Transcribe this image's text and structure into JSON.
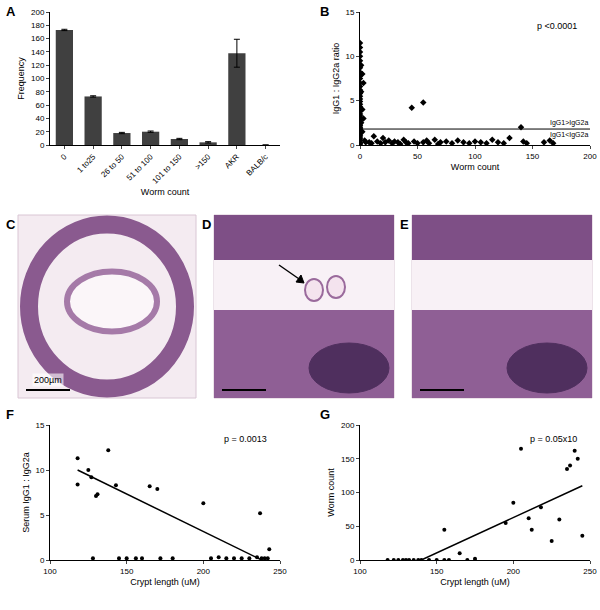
{
  "chart_data": [
    {
      "title": "A",
      "type": "bar",
      "xlabel": "Worm count",
      "ylabel": "Frequency",
      "categories": [
        "0",
        "1 to25",
        "26 to 50",
        "51 to 100",
        "101 to 150",
        ">150",
        "AKR",
        "BALB/c"
      ],
      "values": [
        173,
        73,
        18,
        20,
        9,
        4,
        138,
        0
      ],
      "errors": [
        1,
        1,
        1,
        1,
        1,
        1,
        21,
        0
      ],
      "color": "#404040",
      "ylim": [
        0,
        200
      ],
      "yticks": [
        0,
        20,
        40,
        60,
        80,
        100,
        120,
        140,
        160,
        180,
        200
      ]
    },
    {
      "title": "B",
      "type": "scatter",
      "xlabel": "Worm count",
      "ylabel": "IgG1 : IgG2a ratio",
      "x": [
        0,
        0,
        0,
        0,
        0,
        0,
        0,
        0,
        0,
        0,
        0,
        0,
        0,
        0,
        0,
        0,
        0,
        0,
        0,
        0,
        0,
        0,
        0,
        0,
        0,
        0,
        0,
        0,
        0,
        0,
        0,
        0,
        0,
        0,
        0,
        0,
        0,
        0,
        0,
        0,
        1,
        1,
        2,
        3,
        1,
        2,
        4,
        5,
        3,
        2,
        8,
        10,
        12,
        15,
        18,
        20,
        22,
        25,
        28,
        30,
        33,
        35,
        38,
        40,
        42,
        45,
        47,
        50,
        55,
        55,
        58,
        60,
        65,
        68,
        70,
        75,
        80,
        85,
        90,
        95,
        100,
        105,
        110,
        115,
        120,
        125,
        130,
        140,
        142,
        145,
        160,
        165,
        168
      ],
      "values": [
        11.5,
        11,
        10.5,
        10,
        9.5,
        9,
        8.7,
        8.2,
        7.8,
        7.5,
        7,
        6.6,
        6.2,
        5.8,
        5.5,
        5.2,
        4.9,
        4.6,
        4.3,
        4,
        3.8,
        3.5,
        3.3,
        3,
        2.8,
        2.6,
        2.4,
        2.2,
        2,
        1.9,
        1.7,
        1.5,
        1.3,
        1.1,
        0.9,
        0.7,
        0.5,
        0.3,
        0.2,
        0.1,
        9,
        6,
        4,
        3,
        2.5,
        1.5,
        0.5,
        0.3,
        7,
        8,
        0.3,
        0.2,
        1,
        0.4,
        0.2,
        0.8,
        0.3,
        0.5,
        0.2,
        0.4,
        0.3,
        0.1,
        0.6,
        0.3,
        0.2,
        4.2,
        0.4,
        0.2,
        4.8,
        0.3,
        0.5,
        0.2,
        0.6,
        0.1,
        0.3,
        0.4,
        0.2,
        0.5,
        0.3,
        0.2,
        0.4,
        0.3,
        0.2,
        0.6,
        0.3,
        0.2,
        0.8,
        2,
        0.4,
        0.2,
        0.3,
        0.5,
        0.2
      ],
      "color": "#000000",
      "marker": "diamond",
      "xlim": [
        0,
        200
      ],
      "xticks": [
        0,
        50,
        100,
        150,
        200
      ],
      "ylim": [
        0,
        15
      ],
      "yticks": [
        0,
        5,
        10,
        15
      ],
      "annotation": "p <0.0001",
      "threshold": {
        "value": 1.8,
        "labels": [
          "IgG1>IgG2a",
          "IgG1<IgG2a"
        ]
      }
    },
    {
      "title": "F",
      "type": "scatter",
      "xlabel": "Crypt length (uM)",
      "ylabel": "Serum IgG1 : IgG2a",
      "x": [
        118,
        118,
        125,
        127,
        128,
        130,
        131,
        138,
        143,
        145,
        150,
        156,
        160,
        165,
        170,
        172,
        180,
        200,
        205,
        210,
        215,
        220,
        225,
        230,
        235,
        237,
        238,
        240,
        242,
        243
      ],
      "values": [
        11.3,
        8.4,
        10,
        9.2,
        0.2,
        7.1,
        7.3,
        12.2,
        8.3,
        0.2,
        0.2,
        0.2,
        0.2,
        8.2,
        7.9,
        0.2,
        0.2,
        6.3,
        0.2,
        0.3,
        0.2,
        0.2,
        0.2,
        0.2,
        0.3,
        5.2,
        0.2,
        0.2,
        0.2,
        1.2
      ],
      "color": "#000000",
      "marker": "circle",
      "xlim": [
        100,
        250
      ],
      "xticks": [
        100,
        150,
        200,
        250
      ],
      "ylim": [
        0,
        15
      ],
      "yticks": [
        0,
        5,
        10,
        15
      ],
      "annotation": "p = 0.0013",
      "trend_line": {
        "x": [
          118,
          238
        ],
        "values": [
          10,
          0
        ]
      }
    },
    {
      "title": "G",
      "type": "scatter",
      "xlabel": "Crypt length (uM)",
      "ylabel": "Worm count",
      "x": [
        118,
        122,
        125,
        128,
        130,
        132,
        135,
        138,
        140,
        145,
        150,
        155,
        158,
        165,
        170,
        175,
        155,
        195,
        200,
        205,
        210,
        212,
        218,
        225,
        230,
        235,
        237,
        240,
        242,
        245
      ],
      "values": [
        0,
        0,
        0,
        0,
        0,
        0,
        0,
        0,
        0,
        0,
        0,
        0,
        0,
        10,
        0,
        2,
        45,
        55,
        85,
        165,
        62,
        45,
        78,
        28,
        60,
        135,
        140,
        162,
        150,
        36
      ],
      "color": "#000000",
      "marker": "circle",
      "xlim": [
        100,
        250
      ],
      "xticks": [
        100,
        150,
        200,
        250
      ],
      "ylim": [
        0,
        200
      ],
      "yticks": [
        0,
        50,
        100,
        150,
        200
      ],
      "annotation": "p = 0.05x10",
      "trend_line": {
        "x": [
          140,
          245
        ],
        "values": [
          0,
          110
        ]
      }
    }
  ],
  "images": [
    {
      "title": "C",
      "scale_bar": "200µm"
    },
    {
      "title": "D"
    },
    {
      "title": "E"
    }
  ]
}
